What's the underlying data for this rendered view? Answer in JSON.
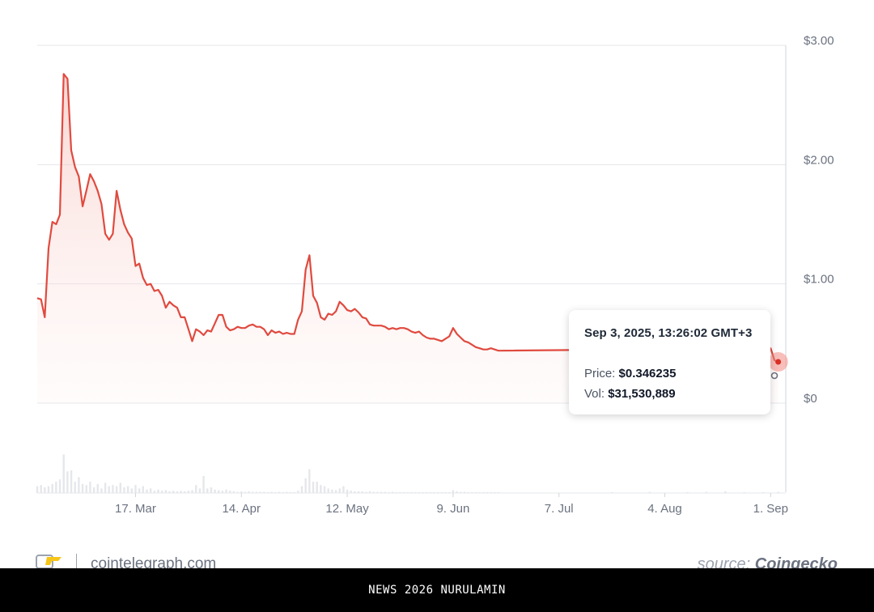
{
  "chart_data": {
    "type": "area",
    "y_axis": {
      "ticks": [
        "$3.00",
        "$2.00",
        "$1.00",
        "$0"
      ],
      "tick_values": [
        3,
        2,
        1,
        0
      ],
      "ylim": [
        0,
        3
      ],
      "position": "right"
    },
    "x_axis": {
      "ticks": [
        "17. Mar",
        "14. Apr",
        "12. May",
        "9. Jun",
        "7. Jul",
        "4. Aug",
        "1. Sep"
      ],
      "tick_days": [
        24,
        52,
        80,
        108,
        136,
        164,
        192
      ],
      "range_days": [
        -2,
        196
      ]
    },
    "grid": true,
    "line_color": "#e04a3f",
    "price_series": [
      [
        -2,
        0.88
      ],
      [
        -1,
        0.87
      ],
      [
        0,
        0.72
      ],
      [
        1,
        1.3
      ],
      [
        2,
        1.52
      ],
      [
        3,
        1.5
      ],
      [
        4,
        1.58
      ],
      [
        5,
        2.76
      ],
      [
        6,
        2.72
      ],
      [
        7,
        2.12
      ],
      [
        8,
        1.98
      ],
      [
        9,
        1.9
      ],
      [
        10,
        1.65
      ],
      [
        11,
        1.78
      ],
      [
        12,
        1.92
      ],
      [
        13,
        1.86
      ],
      [
        14,
        1.78
      ],
      [
        15,
        1.67
      ],
      [
        16,
        1.42
      ],
      [
        17,
        1.37
      ],
      [
        18,
        1.42
      ],
      [
        19,
        1.78
      ],
      [
        20,
        1.62
      ],
      [
        21,
        1.5
      ],
      [
        22,
        1.43
      ],
      [
        23,
        1.38
      ],
      [
        24,
        1.15
      ],
      [
        25,
        1.17
      ],
      [
        26,
        1.05
      ],
      [
        27,
        0.99
      ],
      [
        28,
        1.0
      ],
      [
        29,
        0.94
      ],
      [
        30,
        0.95
      ],
      [
        31,
        0.9
      ],
      [
        32,
        0.8
      ],
      [
        33,
        0.85
      ],
      [
        34,
        0.82
      ],
      [
        35,
        0.8
      ],
      [
        36,
        0.72
      ],
      [
        37,
        0.72
      ],
      [
        38,
        0.62
      ],
      [
        39,
        0.52
      ],
      [
        40,
        0.62
      ],
      [
        41,
        0.6
      ],
      [
        42,
        0.57
      ],
      [
        43,
        0.61
      ],
      [
        44,
        0.6
      ],
      [
        45,
        0.67
      ],
      [
        46,
        0.74
      ],
      [
        47,
        0.74
      ],
      [
        48,
        0.64
      ],
      [
        49,
        0.61
      ],
      [
        50,
        0.62
      ],
      [
        51,
        0.64
      ],
      [
        52,
        0.63
      ],
      [
        53,
        0.63
      ],
      [
        54,
        0.65
      ],
      [
        55,
        0.66
      ],
      [
        56,
        0.64
      ],
      [
        57,
        0.64
      ],
      [
        58,
        0.62
      ],
      [
        59,
        0.57
      ],
      [
        60,
        0.61
      ],
      [
        61,
        0.59
      ],
      [
        62,
        0.6
      ],
      [
        63,
        0.58
      ],
      [
        64,
        0.59
      ],
      [
        65,
        0.58
      ],
      [
        66,
        0.58
      ],
      [
        67,
        0.7
      ],
      [
        68,
        0.77
      ],
      [
        69,
        1.12
      ],
      [
        70,
        1.24
      ],
      [
        71,
        0.9
      ],
      [
        72,
        0.84
      ],
      [
        73,
        0.72
      ],
      [
        74,
        0.7
      ],
      [
        75,
        0.75
      ],
      [
        76,
        0.74
      ],
      [
        77,
        0.77
      ],
      [
        78,
        0.85
      ],
      [
        79,
        0.82
      ],
      [
        80,
        0.78
      ],
      [
        81,
        0.77
      ],
      [
        82,
        0.79
      ],
      [
        83,
        0.76
      ],
      [
        84,
        0.72
      ],
      [
        85,
        0.71
      ],
      [
        86,
        0.66
      ],
      [
        87,
        0.65
      ],
      [
        88,
        0.65
      ],
      [
        89,
        0.65
      ],
      [
        90,
        0.64
      ],
      [
        91,
        0.62
      ],
      [
        92,
        0.63
      ],
      [
        93,
        0.62
      ],
      [
        94,
        0.63
      ],
      [
        95,
        0.63
      ],
      [
        96,
        0.62
      ],
      [
        97,
        0.6
      ],
      [
        98,
        0.59
      ],
      [
        99,
        0.6
      ],
      [
        100,
        0.57
      ],
      [
        101,
        0.55
      ],
      [
        102,
        0.54
      ],
      [
        103,
        0.54
      ],
      [
        104,
        0.53
      ],
      [
        105,
        0.52
      ],
      [
        106,
        0.54
      ],
      [
        107,
        0.56
      ],
      [
        108,
        0.63
      ],
      [
        109,
        0.58
      ],
      [
        110,
        0.55
      ],
      [
        111,
        0.52
      ],
      [
        112,
        0.51
      ],
      [
        113,
        0.49
      ],
      [
        114,
        0.47
      ],
      [
        115,
        0.46
      ],
      [
        116,
        0.45
      ],
      [
        117,
        0.45
      ],
      [
        118,
        0.46
      ],
      [
        119,
        0.45
      ],
      [
        120,
        0.44
      ],
      [
        192,
        0.46
      ],
      [
        193,
        0.36
      ],
      [
        194,
        0.346
      ]
    ],
    "volume_series": [
      [
        -2,
        0.12
      ],
      [
        -1,
        0.14
      ],
      [
        0,
        0.1
      ],
      [
        1,
        0.12
      ],
      [
        2,
        0.16
      ],
      [
        3,
        0.2
      ],
      [
        4,
        0.24
      ],
      [
        5,
        0.68
      ],
      [
        6,
        0.38
      ],
      [
        7,
        0.4
      ],
      [
        8,
        0.2
      ],
      [
        9,
        0.28
      ],
      [
        10,
        0.16
      ],
      [
        11,
        0.14
      ],
      [
        12,
        0.2
      ],
      [
        13,
        0.1
      ],
      [
        14,
        0.16
      ],
      [
        15,
        0.08
      ],
      [
        16,
        0.18
      ],
      [
        17,
        0.12
      ],
      [
        18,
        0.14
      ],
      [
        19,
        0.12
      ],
      [
        20,
        0.18
      ],
      [
        21,
        0.1
      ],
      [
        22,
        0.12
      ],
      [
        23,
        0.08
      ],
      [
        24,
        0.14
      ],
      [
        25,
        0.08
      ],
      [
        26,
        0.12
      ],
      [
        27,
        0.06
      ],
      [
        28,
        0.08
      ],
      [
        29,
        0.04
      ],
      [
        30,
        0.06
      ],
      [
        31,
        0.04
      ],
      [
        32,
        0.05
      ],
      [
        33,
        0.03
      ],
      [
        34,
        0.04
      ],
      [
        35,
        0.03
      ],
      [
        36,
        0.04
      ],
      [
        37,
        0.03
      ],
      [
        38,
        0.04
      ],
      [
        39,
        0.05
      ],
      [
        40,
        0.14
      ],
      [
        41,
        0.08
      ],
      [
        42,
        0.3
      ],
      [
        43,
        0.08
      ],
      [
        44,
        0.1
      ],
      [
        45,
        0.06
      ],
      [
        46,
        0.05
      ],
      [
        47,
        0.04
      ],
      [
        48,
        0.06
      ],
      [
        49,
        0.04
      ],
      [
        50,
        0.03
      ],
      [
        51,
        0.02
      ],
      [
        52,
        0.03
      ],
      [
        53,
        0.02
      ],
      [
        54,
        0.03
      ],
      [
        55,
        0.02
      ],
      [
        56,
        0.02
      ],
      [
        57,
        0.02
      ],
      [
        58,
        0.02
      ],
      [
        59,
        0.01
      ],
      [
        60,
        0.02
      ],
      [
        61,
        0.01
      ],
      [
        62,
        0.02
      ],
      [
        63,
        0.01
      ],
      [
        64,
        0.02
      ],
      [
        65,
        0.01
      ],
      [
        66,
        0.01
      ],
      [
        67,
        0.04
      ],
      [
        68,
        0.12
      ],
      [
        69,
        0.26
      ],
      [
        70,
        0.42
      ],
      [
        71,
        0.2
      ],
      [
        72,
        0.2
      ],
      [
        73,
        0.14
      ],
      [
        74,
        0.12
      ],
      [
        75,
        0.08
      ],
      [
        76,
        0.06
      ],
      [
        77,
        0.05
      ],
      [
        78,
        0.08
      ],
      [
        79,
        0.12
      ],
      [
        80,
        0.06
      ],
      [
        81,
        0.04
      ],
      [
        82,
        0.03
      ],
      [
        83,
        0.03
      ],
      [
        84,
        0.03
      ],
      [
        85,
        0.02
      ],
      [
        86,
        0.03
      ],
      [
        87,
        0.02
      ],
      [
        88,
        0.02
      ],
      [
        89,
        0.02
      ],
      [
        90,
        0.02
      ],
      [
        91,
        0.01
      ],
      [
        92,
        0.02
      ],
      [
        93,
        0.01
      ],
      [
        94,
        0.01
      ],
      [
        95,
        0.01
      ],
      [
        96,
        0.01
      ],
      [
        97,
        0.01
      ],
      [
        98,
        0.01
      ],
      [
        99,
        0.01
      ],
      [
        100,
        0.01
      ],
      [
        101,
        0.01
      ],
      [
        102,
        0.01
      ],
      [
        103,
        0.01
      ],
      [
        104,
        0.01
      ],
      [
        105,
        0.01
      ],
      [
        106,
        0.01
      ],
      [
        107,
        0.01
      ],
      [
        108,
        0.05
      ],
      [
        109,
        0.03
      ],
      [
        110,
        0.02
      ],
      [
        111,
        0.02
      ],
      [
        112,
        0.01
      ],
      [
        113,
        0.01
      ],
      [
        114,
        0.01
      ],
      [
        115,
        0.01
      ],
      [
        116,
        0.01
      ],
      [
        117,
        0.01
      ],
      [
        118,
        0.01
      ],
      [
        119,
        0.01
      ],
      [
        120,
        0.01
      ],
      [
        150,
        0.01
      ],
      [
        160,
        0.02
      ],
      [
        170,
        0.01
      ],
      [
        175,
        0.02
      ],
      [
        180,
        0.03
      ],
      [
        185,
        0.01
      ],
      [
        190,
        0.01
      ],
      [
        194,
        0.02
      ]
    ],
    "volume_max": 1,
    "marker": {
      "x": 194,
      "y": 0.346235
    }
  },
  "tooltip": {
    "datetime": "Sep 3, 2025, 13:26:02 GMT+3",
    "price_label": "Price:",
    "price_value": "$0.346235",
    "vol_label": "Vol:",
    "vol_value": "$31,530,889"
  },
  "footer": {
    "site": "cointelegraph.com",
    "source_label": "source:",
    "source_name": "Coingecko"
  },
  "banner": {
    "text": "NEWS 2026 NURULAMIN"
  }
}
